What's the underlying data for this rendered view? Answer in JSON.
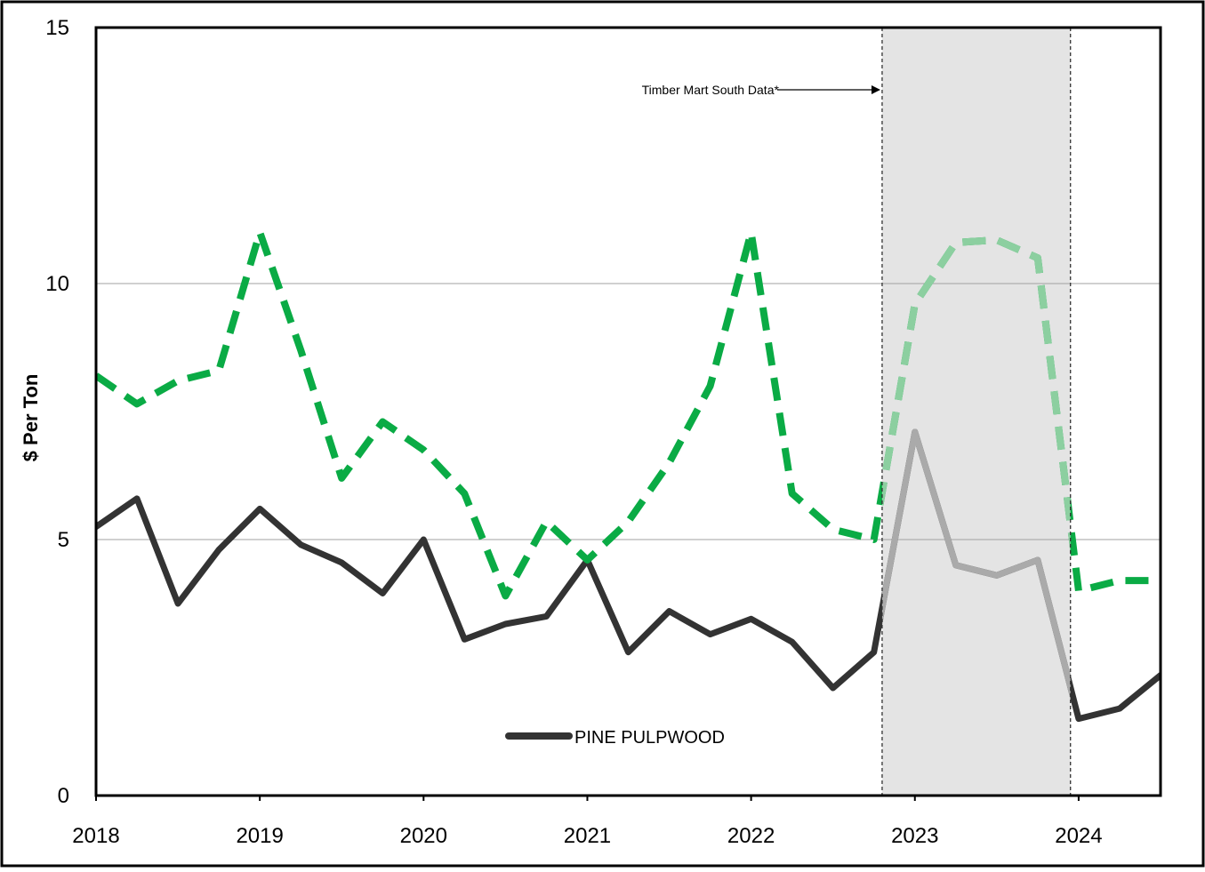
{
  "chart_data": {
    "type": "line",
    "ylabel": "$ Per Ton",
    "xlabel": "",
    "title": "",
    "ylim": [
      0,
      15
    ],
    "xlim": [
      2018,
      2024.5
    ],
    "y_ticks": [
      0,
      5,
      10,
      15
    ],
    "x_ticks": [
      2018,
      2019,
      2020,
      2021,
      2022,
      2023,
      2024
    ],
    "x_tick_labels": [
      "2018",
      "2019",
      "2020",
      "2021",
      "2022",
      "2023",
      "2024"
    ],
    "y_tick_labels": [
      "0",
      "5",
      "10",
      "15"
    ],
    "gridlines_y": [
      5,
      10
    ],
    "legend_position": "bottom-center",
    "shaded_region": {
      "x_start": 2022.8,
      "x_end": 2023.95,
      "fill": "#e4e4e4",
      "annotation": "Timber Mart South Data*"
    },
    "series": [
      {
        "name": "PINE PULPWOOD",
        "color": "#333333",
        "faded_color": "#aaaaaa",
        "style": "solid",
        "show_in_legend": true,
        "x": [
          2018,
          2018.25,
          2018.5,
          2018.75,
          2019,
          2019.25,
          2019.5,
          2019.75,
          2020,
          2020.25,
          2020.5,
          2020.75,
          2021,
          2021.25,
          2021.5,
          2021.75,
          2022,
          2022.25,
          2022.5,
          2022.75,
          2023,
          2023.25,
          2023.5,
          2023.75,
          2024,
          2024.25,
          2024.5
        ],
        "values": [
          5.25,
          5.8,
          3.75,
          4.8,
          5.6,
          4.9,
          4.55,
          3.95,
          5.0,
          3.05,
          3.35,
          3.5,
          4.6,
          2.8,
          3.6,
          3.15,
          3.45,
          3.0,
          2.1,
          2.8,
          7.1,
          4.5,
          4.3,
          4.6,
          1.5,
          1.7,
          2.35
        ]
      },
      {
        "name": "",
        "color": "#0aab45",
        "faded_color": "#8ccfa0",
        "style": "dashed",
        "show_in_legend": false,
        "x": [
          2018,
          2018.25,
          2018.5,
          2018.75,
          2019,
          2019.25,
          2019.5,
          2019.75,
          2020,
          2020.25,
          2020.5,
          2020.75,
          2021,
          2021.25,
          2021.5,
          2021.75,
          2022,
          2022.25,
          2022.5,
          2022.75,
          2023,
          2023.25,
          2023.5,
          2023.75,
          2024,
          2024.25,
          2024.5
        ],
        "values": [
          8.2,
          7.65,
          8.1,
          8.3,
          11.0,
          8.7,
          6.2,
          7.3,
          6.75,
          5.9,
          3.9,
          5.35,
          4.6,
          5.35,
          6.5,
          8.0,
          11.0,
          5.9,
          5.2,
          5.0,
          9.6,
          10.8,
          10.85,
          10.5,
          4.0,
          4.2,
          4.2
        ]
      }
    ]
  }
}
